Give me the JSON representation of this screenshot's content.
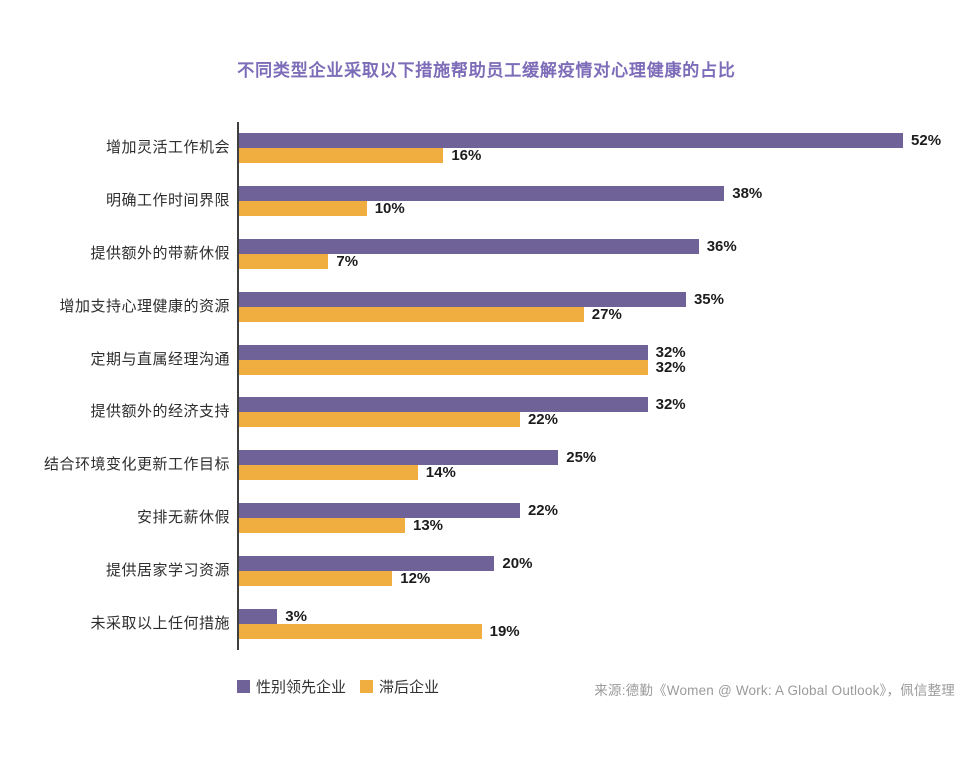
{
  "title": "不同类型企业采取以下措施帮助员工缓解疫情对心理健康的占比",
  "source": "来源:德勤《Women @ Work: A Global Outlook》，佩信整理",
  "colors": {
    "leading_purple": "#6F6299",
    "lagging_yellow": "#F0AE41",
    "title_purple": "#7d6cb8",
    "axis": "#3f3f3f"
  },
  "legend": [
    {
      "label": "性别领先企业",
      "color": "#6F6299"
    },
    {
      "label": "滞后企业",
      "color": "#F0AE41"
    }
  ],
  "chart_data": {
    "type": "bar",
    "orientation": "horizontal",
    "title": "不同类型企业采取以下措施帮助员工缓解疫情对心理健康的占比",
    "xlabel": "",
    "ylabel": "",
    "xlim": [
      0,
      55
    ],
    "grid": false,
    "legend_position": "bottom-left",
    "value_suffix": "%",
    "categories": [
      "增加灵活工作机会",
      "明确工作时间界限",
      "提供额外的带薪休假",
      "增加支持心理健康的资源",
      "定期与直属经理沟通",
      "提供额外的经济支持",
      "结合环境变化更新工作目标",
      "安排无薪休假",
      "提供居家学习资源",
      "未采取以上任何措施"
    ],
    "series": [
      {
        "name": "性别领先企业",
        "color": "#6F6299",
        "values": [
          52,
          38,
          36,
          35,
          32,
          32,
          25,
          22,
          20,
          3
        ]
      },
      {
        "name": "滞后企业",
        "color": "#F0AE41",
        "values": [
          16,
          10,
          7,
          27,
          32,
          22,
          14,
          13,
          12,
          19
        ]
      }
    ]
  }
}
